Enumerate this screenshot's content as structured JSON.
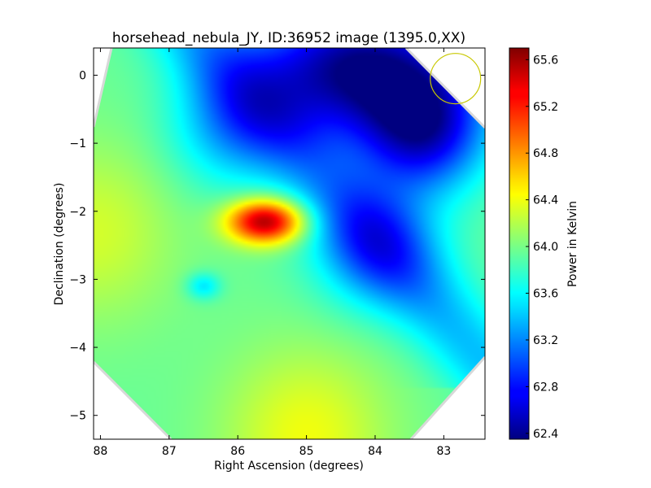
{
  "chart_data": {
    "type": "heatmap",
    "title": "horsehead_nebula_JY, ID:36952 image (1395.0,XX)",
    "xlabel": "Right Ascension (degrees)",
    "ylabel": "Declination (degrees)",
    "colorbar_label": "Power in Kelvin",
    "colormap": "jet",
    "xlim": [
      88.1,
      82.4
    ],
    "ylim": [
      -5.35,
      0.4
    ],
    "x_ticks": [
      88,
      87,
      86,
      85,
      84,
      83
    ],
    "y_ticks": [
      0,
      -1,
      -2,
      -3,
      -4,
      -5
    ],
    "color_range": [
      62.35,
      65.7
    ],
    "colorbar_ticks": [
      62.4,
      62.8,
      63.2,
      63.6,
      64.0,
      64.4,
      64.8,
      65.2,
      65.6
    ],
    "footprint": "octagon",
    "beam_marker": {
      "shape": "circle",
      "ra": 82.83,
      "dec": -0.05,
      "radius_deg": 0.37,
      "color": "#c8c800"
    },
    "background_level": 63.95,
    "field_features": [
      {
        "kind": "peak",
        "ra": 85.6,
        "dec": -2.15,
        "value": 65.6
      },
      {
        "kind": "minimum",
        "ra": 84.3,
        "dec": 0.1,
        "value": 62.4
      },
      {
        "kind": "low region",
        "ra": 83.3,
        "dec": -0.8,
        "value": 62.7
      },
      {
        "kind": "low region",
        "ra": 84.0,
        "dec": -2.5,
        "value": 63.2
      },
      {
        "kind": "low region",
        "ra": 86.1,
        "dec": -0.8,
        "value": 63.4
      },
      {
        "kind": "local dip",
        "ra": 86.5,
        "dec": -3.1,
        "value": 63.5
      },
      {
        "kind": "high region",
        "ra": 88.1,
        "dec": -2.3,
        "value": 64.3
      },
      {
        "kind": "high region",
        "ra": 85.0,
        "dec": -5.3,
        "value": 64.4
      }
    ]
  }
}
